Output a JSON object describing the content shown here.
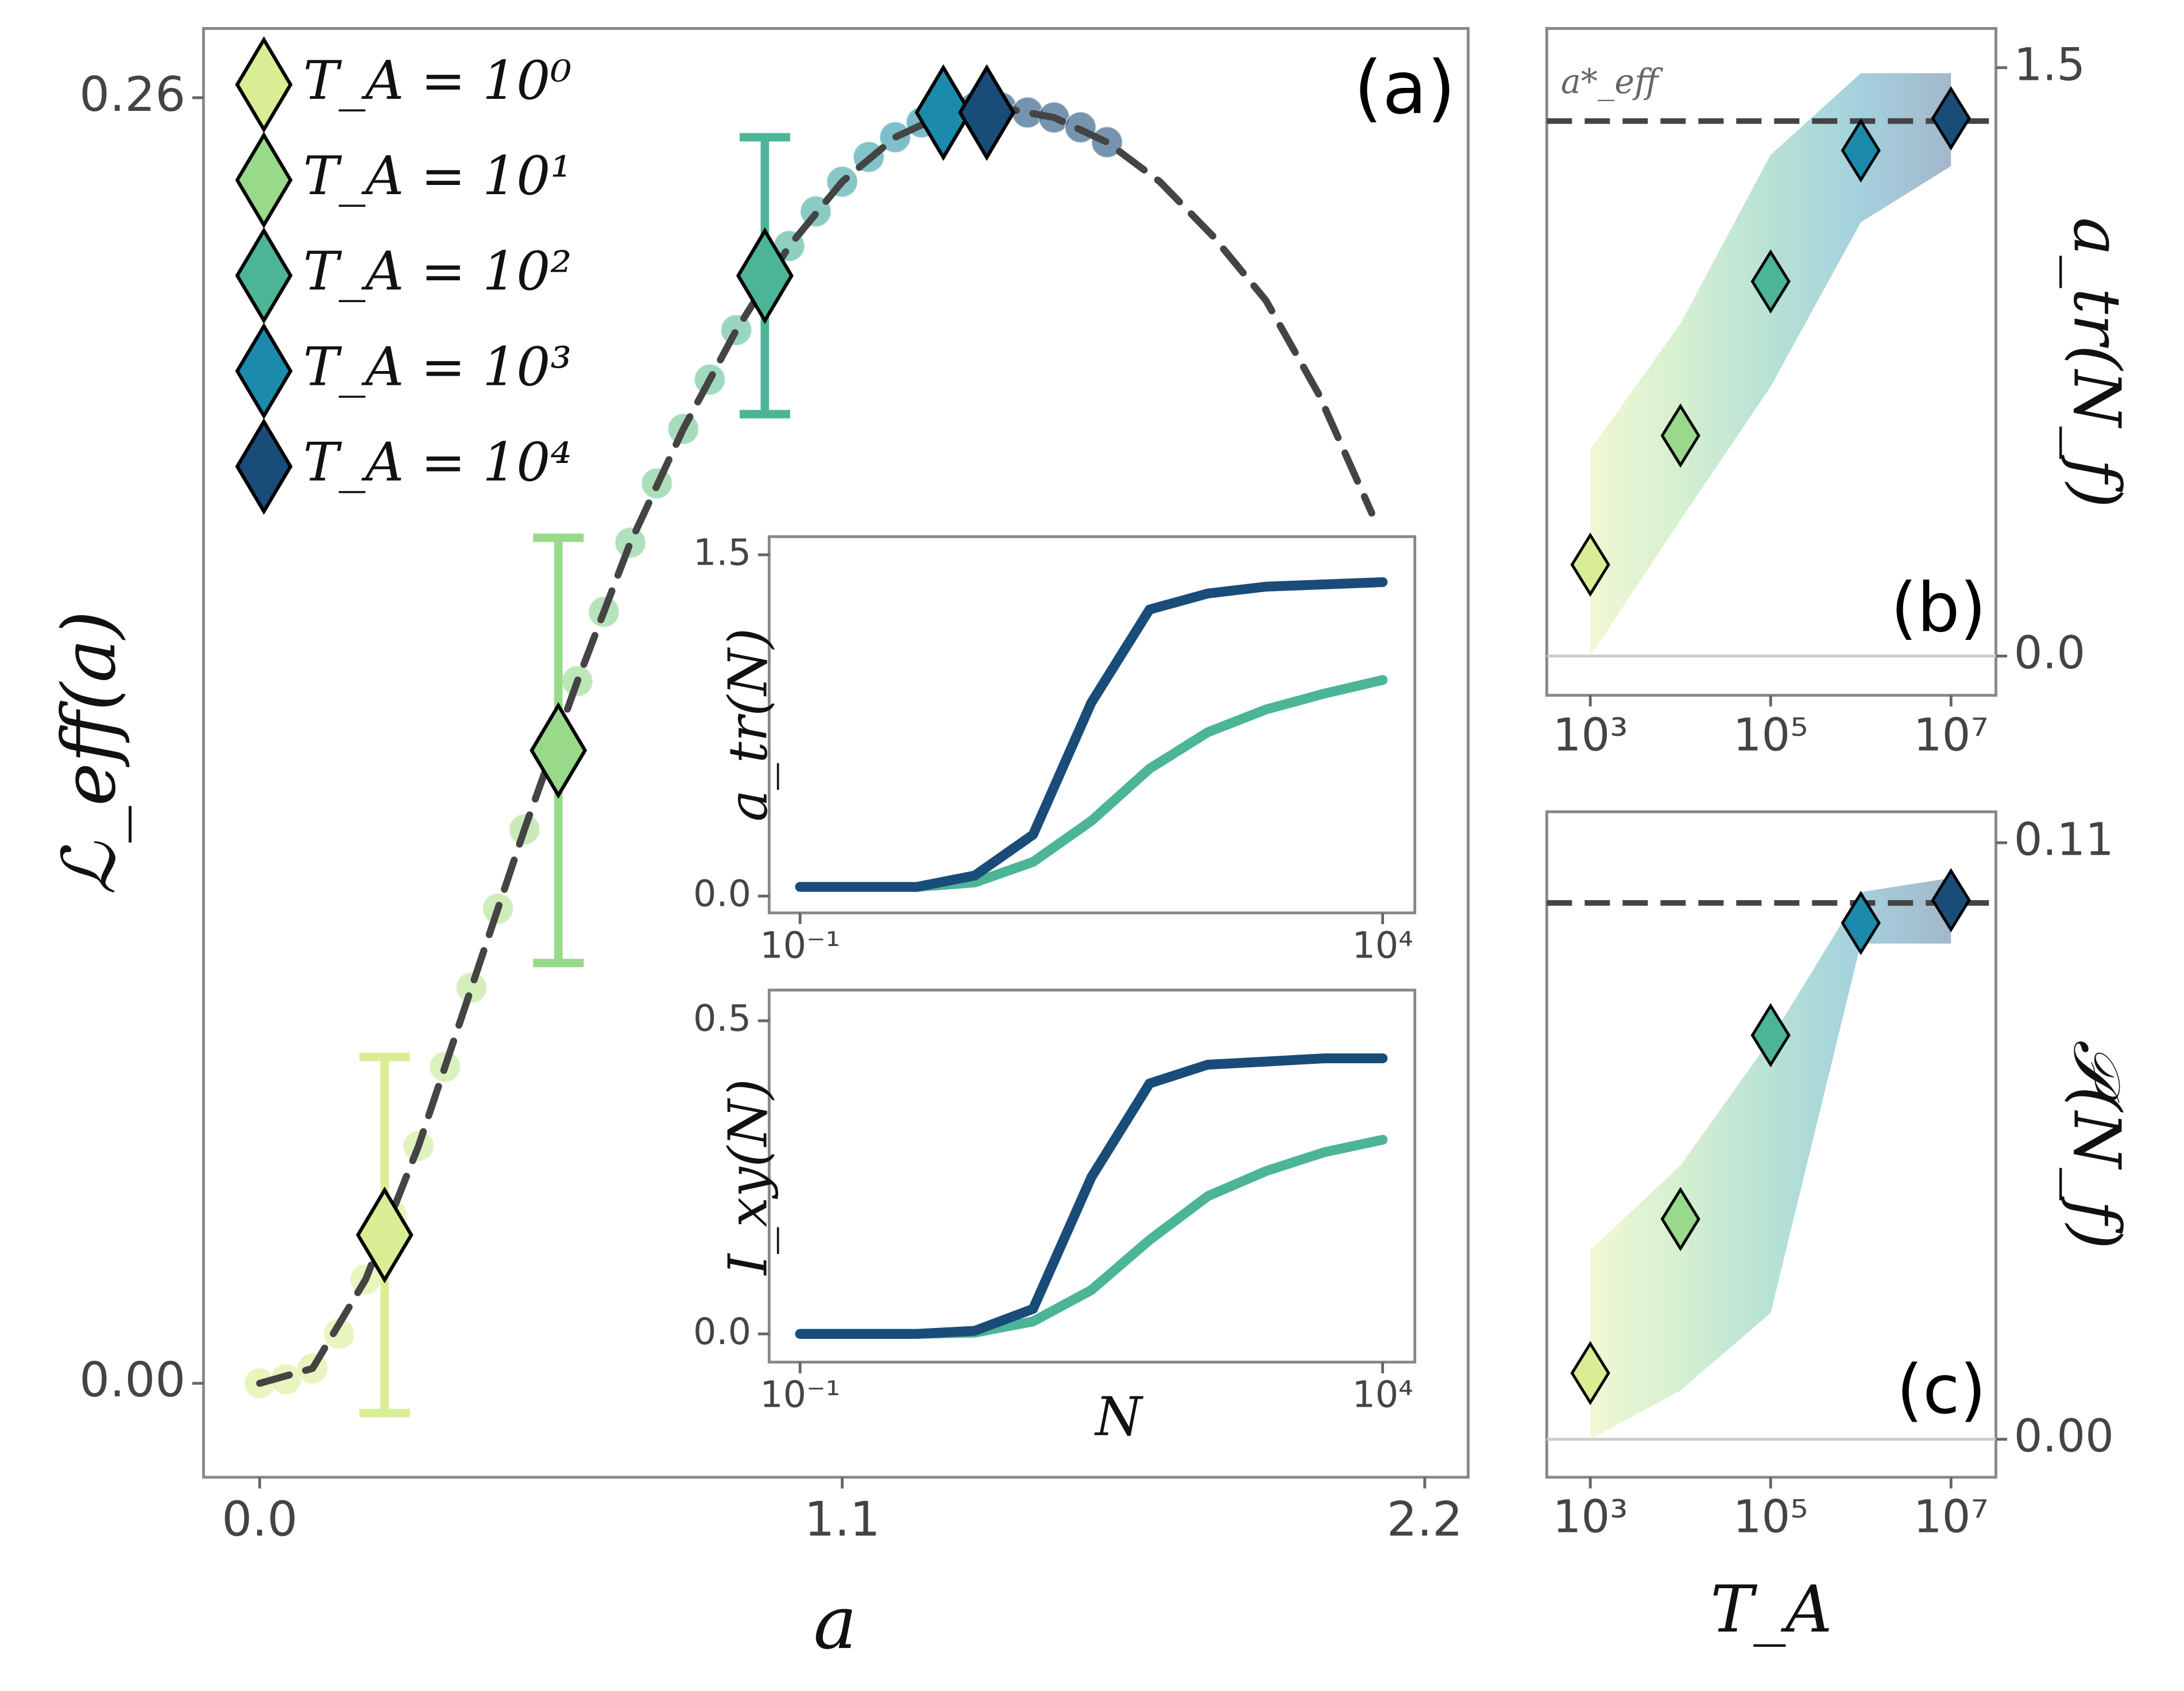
{
  "chart_data": [
    {
      "type": "line",
      "annotation": "(a)",
      "x_label": "a",
      "y_label": "ℒ_eff(a)",
      "xlim": [
        -0.106,
        2.282
      ],
      "ylim": [
        -0.019,
        0.274
      ],
      "xticks": [
        {
          "value": 0,
          "label": "0.0"
        },
        1.1,
        2.2
      ],
      "yticks": [
        {
          "value": 0,
          "label": "0.00"
        },
        0.26
      ],
      "legend": "upper left",
      "series": [
        {
          "style": "circles",
          "x": [
            0,
            0.05,
            0.1,
            0.15,
            0.2,
            0.25,
            0.3,
            0.35,
            0.4,
            0.45,
            0.5,
            0.55,
            0.6,
            0.65,
            0.7,
            0.75,
            0.8,
            0.85,
            0.9,
            0.95,
            1.0,
            1.05,
            1.1,
            1.15,
            1.2,
            1.25,
            1.3,
            1.35,
            1.4,
            1.45,
            1.5,
            1.55,
            1.6
          ],
          "values": [
            0,
            0.0008,
            0.003,
            0.01,
            0.021,
            0.034,
            0.048,
            0.064,
            0.08,
            0.096,
            0.112,
            0.127,
            0.142,
            0.156,
            0.17,
            0.182,
            0.193,
            0.203,
            0.213,
            0.222,
            0.23,
            0.237,
            0.243,
            0.248,
            0.252,
            0.255,
            0.257,
            0.258,
            0.258,
            0.257,
            0.256,
            0.254,
            0.251
          ]
        },
        {
          "style": "dashed",
          "color": "#444444",
          "x": [
            0,
            0.1,
            0.2,
            0.3,
            0.4,
            0.5,
            0.6,
            0.7,
            0.8,
            0.9,
            1.0,
            1.1,
            1.2,
            1.3,
            1.4,
            1.5,
            1.6,
            1.7,
            1.8,
            1.9,
            2.0,
            2.1
          ],
          "values": [
            0,
            0.003,
            0.021,
            0.048,
            0.08,
            0.112,
            0.142,
            0.17,
            0.193,
            0.213,
            0.23,
            0.243,
            0.252,
            0.257,
            0.258,
            0.256,
            0.251,
            0.243,
            0.232,
            0.219,
            0.2,
            0.176
          ]
        },
        {
          "name": "T_A = 10⁰",
          "style": "diamond",
          "color": "#d9ee94",
          "x": [
            0.236
          ],
          "values": [
            0.03
          ],
          "errors": [
            0.036
          ]
        },
        {
          "name": "T_A = 10¹",
          "style": "diamond",
          "color": "#98d98a",
          "x": [
            0.564
          ],
          "values": [
            0.128
          ],
          "errors": [
            0.043
          ]
        },
        {
          "name": "T_A = 10²",
          "style": "diamond",
          "color": "#4cb597",
          "x": [
            0.954
          ],
          "values": [
            0.224
          ],
          "errors": [
            0.028
          ]
        },
        {
          "name": "T_A = 10³",
          "style": "diamond",
          "color": "#1b8aad",
          "x": [
            1.291
          ],
          "values": [
            0.257
          ]
        },
        {
          "name": "T_A = 10⁴",
          "style": "diamond",
          "color": "#1a4c7a",
          "x": [
            1.373
          ],
          "values": [
            0.257
          ]
        }
      ]
    },
    {
      "type": "line",
      "y_label": "a_tr(N)",
      "x_scale": "log",
      "xlim": [
        0.0543,
        18900
      ],
      "ylim": [
        -0.074,
        1.58
      ],
      "xticks": [
        {
          "value": 0.1,
          "label": "10⁻¹"
        },
        {
          "value": 10000,
          "label": "10⁴"
        }
      ],
      "yticks": [
        {
          "value": 0,
          "label": "0.0"
        },
        1.5
      ],
      "x": [
        0.1,
        1,
        3.16,
        10,
        31.6,
        100,
        316,
        1000,
        3160,
        10000
      ],
      "series": [
        {
          "style": "solid",
          "color": "#4cb597",
          "values": [
            0.04,
            0.04,
            0.06,
            0.15,
            0.33,
            0.56,
            0.72,
            0.82,
            0.89,
            0.95
          ]
        },
        {
          "style": "solid",
          "color": "#1a4c7a",
          "values": [
            0.04,
            0.04,
            0.09,
            0.27,
            0.85,
            1.26,
            1.33,
            1.36,
            1.37,
            1.38
          ]
        }
      ]
    },
    {
      "type": "line",
      "x_label": "N",
      "y_label": "I_xy(N)",
      "x_scale": "log",
      "xlim": [
        0.0543,
        18900
      ],
      "ylim": [
        -0.045,
        0.549
      ],
      "xticks": [
        {
          "value": 0.1,
          "label": "10⁻¹"
        },
        {
          "value": 10000,
          "label": "10⁴"
        }
      ],
      "yticks": [
        {
          "value": 0,
          "label": "0.0"
        },
        0.5
      ],
      "x": [
        0.1,
        1,
        3.16,
        10,
        31.6,
        100,
        316,
        1000,
        3160,
        10000
      ],
      "series": [
        {
          "style": "solid",
          "color": "#4cb597",
          "values": [
            0,
            0,
            0.002,
            0.02,
            0.07,
            0.15,
            0.22,
            0.26,
            0.29,
            0.31
          ]
        },
        {
          "style": "solid",
          "color": "#1a4c7a",
          "values": [
            0,
            0,
            0.005,
            0.04,
            0.25,
            0.4,
            0.43,
            0.435,
            0.44,
            0.44
          ]
        }
      ]
    },
    {
      "type": "scatter",
      "annotation": "(b)",
      "y_label": "a_tr(N_f)",
      "x_scale": "log",
      "y_axis": "right",
      "xlim": [
        329,
        31500000
      ],
      "ylim": [
        -0.1,
        1.6
      ],
      "xticks": [
        {
          "value": 1000,
          "label": "10³"
        },
        {
          "value": 100000,
          "label": "10⁵"
        },
        {
          "value": 10000000,
          "label": "10⁷"
        }
      ],
      "yticks": [
        {
          "value": 0,
          "label": "0.0"
        },
        1.5
      ],
      "reference_line": 1.364,
      "reference_label": "a*_eff",
      "x": [
        1000,
        10000,
        100000,
        1000000,
        10000000
      ],
      "series": [
        {
          "colors": [
            "#d9ee94",
            "#98d98a",
            "#4cb597",
            "#1b8aad",
            "#1a4c7a"
          ],
          "values": [
            0.233,
            0.562,
            0.955,
            1.289,
            1.371
          ],
          "lower": [
            0.0,
            0.347,
            0.687,
            1.106,
            1.249
          ],
          "upper": [
            0.526,
            0.848,
            1.278,
            1.486,
            1.486
          ]
        }
      ]
    },
    {
      "type": "scatter",
      "annotation": "(c)",
      "x_label": "T_A",
      "y_label": "𝒫(N_f)",
      "x_scale": "log",
      "y_axis": "right",
      "xlim": [
        329,
        31500000
      ],
      "ylim": [
        -0.007,
        0.1157
      ],
      "xticks": [
        {
          "value": 1000,
          "label": "10³"
        },
        {
          "value": 100000,
          "label": "10⁵"
        },
        {
          "value": 10000000,
          "label": "10⁷"
        }
      ],
      "yticks": [
        {
          "value": 0,
          "label": "0.00"
        },
        0.11
      ],
      "reference_line": 0.0989,
      "x": [
        1000,
        10000,
        100000,
        1000000,
        10000000
      ],
      "series": [
        {
          "colors": [
            "#d9ee94",
            "#98d98a",
            "#4cb597",
            "#1b8aad",
            "#1a4c7a"
          ],
          "values": [
            0.0122,
            0.0406,
            0.0745,
            0.0952,
            0.0994
          ],
          "lower": [
            0.0,
            0.009,
            0.0233,
            0.0914,
            0.0914
          ],
          "upper": [
            0.0349,
            0.0505,
            0.0738,
            0.1009,
            0.1035
          ]
        }
      ]
    }
  ]
}
